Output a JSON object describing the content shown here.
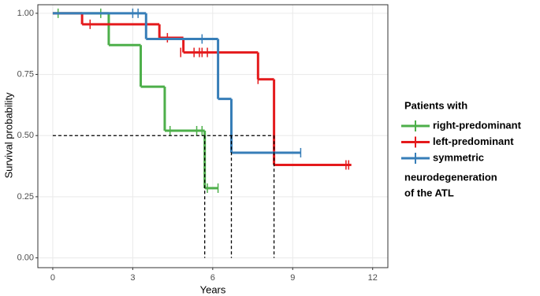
{
  "chart_data": {
    "type": "km",
    "x_label": "Years",
    "y_label": "Survival probability",
    "xlim": [
      -0.56,
      12.57
    ],
    "ylim": [
      -0.04,
      1.035
    ],
    "xticks": [
      0,
      3,
      6,
      9,
      12
    ],
    "yticks": [
      {
        "value": 0,
        "label": "0.00"
      },
      {
        "value": 0.25,
        "label": "0.25"
      },
      {
        "value": 0.5,
        "label": "0.50"
      },
      {
        "value": 0.75,
        "label": "0.75"
      },
      {
        "value": 1,
        "label": "1.00"
      }
    ],
    "grid": true,
    "legend_title": "Patients with",
    "legend_note": [
      "neurodegeneration",
      "of the ATL"
    ],
    "median_level": 0.5,
    "medians": [
      5.7,
      6.7,
      8.3
    ],
    "series": [
      {
        "name": "right-predominant",
        "color": "#4daf4a",
        "x": [
          0,
          2.1,
          3.3,
          4.2,
          5.7,
          6.2
        ],
        "values": [
          1,
          0.87,
          0.7,
          0.52,
          0.285,
          0.285
        ],
        "censor_x": [
          0.2,
          1.8,
          4.4,
          5.4,
          5.6,
          5.8,
          6.2
        ],
        "censor_values": [
          1,
          1,
          0.52,
          0.52,
          0.52,
          0.285,
          0.285
        ]
      },
      {
        "name": "left-predominant",
        "color": "#e41a1c",
        "x": [
          0,
          1.1,
          4.0,
          4.9,
          7.7,
          8.3,
          11.2
        ],
        "values": [
          1,
          0.955,
          0.9,
          0.84,
          0.73,
          0.38,
          0.38
        ],
        "censor_x": [
          1.4,
          4.3,
          4.8,
          5.3,
          5.5,
          5.6,
          5.8,
          7.7,
          11.0,
          11.1
        ],
        "censor_values": [
          0.955,
          0.9,
          0.84,
          0.84,
          0.84,
          0.84,
          0.84,
          0.73,
          0.38,
          0.38
        ]
      },
      {
        "name": "symmetric",
        "color": "#377eb8",
        "x": [
          0,
          3.5,
          6.2,
          6.7,
          9.3
        ],
        "values": [
          1,
          0.895,
          0.65,
          0.43,
          0.43
        ],
        "censor_x": [
          3.0,
          3.2,
          5.6,
          9.3
        ],
        "censor_values": [
          1,
          1,
          0.895,
          0.43
        ]
      }
    ]
  }
}
